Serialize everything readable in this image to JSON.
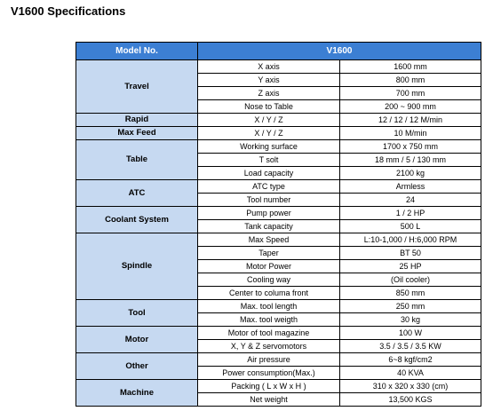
{
  "title": "V1600 Specifications",
  "table": {
    "header": [
      "Model No.",
      "V1600"
    ],
    "groups": [
      {
        "name": "Travel",
        "rows": [
          [
            "X axis",
            "1600 mm"
          ],
          [
            "Y axis",
            "800 mm"
          ],
          [
            "Z axis",
            "700 mm"
          ],
          [
            "Nose to Table",
            "200 ~ 900 mm"
          ]
        ]
      },
      {
        "name": "Rapid",
        "rows": [
          [
            "X / Y / Z",
            "12 / 12 / 12 M/min"
          ]
        ]
      },
      {
        "name": "Max Feed",
        "rows": [
          [
            "X / Y / Z",
            "10 M/min"
          ]
        ]
      },
      {
        "name": "Table",
        "rows": [
          [
            "Working surface",
            "1700 x 750 mm"
          ],
          [
            "T solt",
            "18 mm / 5 / 130 mm"
          ],
          [
            "Load capacity",
            "2100 kg"
          ]
        ]
      },
      {
        "name": "ATC",
        "rows": [
          [
            "ATC type",
            "Armless"
          ],
          [
            "Tool number",
            "24"
          ]
        ]
      },
      {
        "name": "Coolant System",
        "rows": [
          [
            "Pump power",
            "1 / 2 HP"
          ],
          [
            "Tank capacity",
            "500 L"
          ]
        ]
      },
      {
        "name": "Spindle",
        "rows": [
          [
            "Max Speed",
            "L:10-1,000 / H:6,000 RPM"
          ],
          [
            "Taper",
            "BT 50"
          ],
          [
            "Motor Power",
            "25 HP"
          ],
          [
            "Cooling way",
            "(Oil cooler)"
          ],
          [
            "Center to columa front",
            "850 mm"
          ]
        ]
      },
      {
        "name": "Tool",
        "rows": [
          [
            "Max. tool length",
            "250 mm"
          ],
          [
            "Max. tool weigth",
            "30 kg"
          ]
        ]
      },
      {
        "name": "Motor",
        "rows": [
          [
            "Motor of tool magazine",
            "100 W"
          ],
          [
            "X, Y & Z servomotors",
            "3.5 / 3.5 / 3.5 KW"
          ]
        ]
      },
      {
        "name": "Other",
        "rows": [
          [
            "Air pressure",
            "6~8 kgf/cm2"
          ],
          [
            "Power consumption(Max.)",
            "40 KVA"
          ]
        ]
      },
      {
        "name": "Machine",
        "rows": [
          [
            "Packing ( L x W x H )",
            "310 x 320 x 330 (cm)"
          ],
          [
            "Net weight",
            "13,500 KGS"
          ]
        ]
      }
    ]
  }
}
